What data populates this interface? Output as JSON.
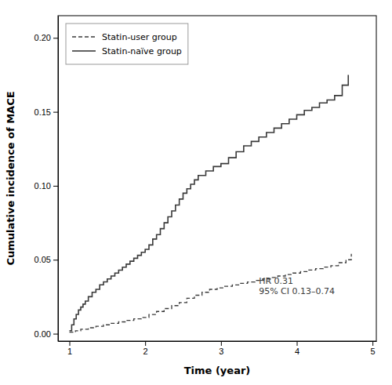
{
  "chart_data": {
    "type": "step",
    "xlabel": "Time (year)",
    "ylabel": "Cumulative incidence of MACE",
    "xlim": [
      0.85,
      5.05
    ],
    "ylim": [
      -0.005,
      0.215
    ],
    "xticks": [
      1,
      2,
      3,
      4,
      5
    ],
    "yticks": [
      {
        "value": 0.0,
        "label": "0.00"
      },
      0.05,
      {
        "value": 0.1,
        "label": "0.10"
      },
      0.15,
      {
        "value": 0.2,
        "label": "0.20"
      }
    ],
    "color": "#3a3a3a",
    "grid": false,
    "legend": "upper left",
    "annotations": [
      {
        "text": "HR 0.31\n95% CI 0.13–0.74",
        "x": 3.5,
        "y": 0.025
      }
    ],
    "series": [
      {
        "name": "Statin-user group",
        "line_style": "dashed",
        "x": [
          1.0,
          1.08,
          1.15,
          1.25,
          1.35,
          1.45,
          1.55,
          1.65,
          1.75,
          1.85,
          1.95,
          2.05,
          2.15,
          2.25,
          2.35,
          2.45,
          2.55,
          2.65,
          2.75,
          2.85,
          2.95,
          3.05,
          3.15,
          3.25,
          3.35,
          3.45,
          3.55,
          3.65,
          3.75,
          3.85,
          3.95,
          4.05,
          4.15,
          4.25,
          4.35,
          4.45,
          4.55,
          4.65,
          4.72
        ],
        "values": [
          0.001,
          0.002,
          0.003,
          0.004,
          0.005,
          0.006,
          0.007,
          0.008,
          0.009,
          0.01,
          0.011,
          0.013,
          0.015,
          0.017,
          0.019,
          0.021,
          0.024,
          0.026,
          0.028,
          0.03,
          0.031,
          0.032,
          0.033,
          0.034,
          0.035,
          0.036,
          0.037,
          0.038,
          0.039,
          0.04,
          0.041,
          0.042,
          0.043,
          0.044,
          0.045,
          0.046,
          0.048,
          0.05,
          0.054
        ]
      },
      {
        "name": "Statin-naïve group",
        "line_style": "solid",
        "x": [
          1.0,
          1.03,
          1.06,
          1.09,
          1.12,
          1.15,
          1.18,
          1.21,
          1.25,
          1.3,
          1.35,
          1.4,
          1.45,
          1.5,
          1.55,
          1.6,
          1.65,
          1.7,
          1.75,
          1.8,
          1.85,
          1.9,
          1.95,
          2.0,
          2.05,
          2.1,
          2.15,
          2.2,
          2.25,
          2.3,
          2.35,
          2.4,
          2.45,
          2.5,
          2.55,
          2.6,
          2.65,
          2.7,
          2.8,
          2.9,
          3.0,
          3.1,
          3.2,
          3.3,
          3.4,
          3.5,
          3.6,
          3.7,
          3.8,
          3.9,
          4.0,
          4.1,
          4.2,
          4.3,
          4.4,
          4.5,
          4.6,
          4.68
        ],
        "values": [
          0.002,
          0.006,
          0.01,
          0.013,
          0.016,
          0.018,
          0.02,
          0.022,
          0.025,
          0.028,
          0.03,
          0.033,
          0.035,
          0.037,
          0.039,
          0.041,
          0.043,
          0.045,
          0.047,
          0.049,
          0.051,
          0.053,
          0.055,
          0.057,
          0.06,
          0.064,
          0.067,
          0.071,
          0.075,
          0.079,
          0.083,
          0.087,
          0.091,
          0.095,
          0.098,
          0.101,
          0.104,
          0.107,
          0.11,
          0.113,
          0.115,
          0.119,
          0.123,
          0.127,
          0.13,
          0.133,
          0.136,
          0.139,
          0.142,
          0.145,
          0.148,
          0.151,
          0.153,
          0.156,
          0.158,
          0.161,
          0.168,
          0.175
        ]
      }
    ]
  }
}
